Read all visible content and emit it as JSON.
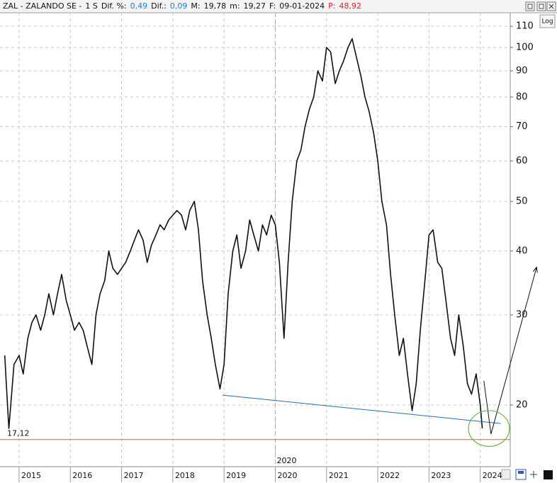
{
  "header": {
    "items": [
      {
        "text": "ZAL - ZALANDO SE -",
        "color": "#111111"
      },
      {
        "text": "1 S",
        "color": "#111111"
      },
      {
        "text": "Dif. %:",
        "color": "#111111"
      },
      {
        "text": "0,49",
        "color": "#1e7fd6"
      },
      {
        "text": "Dif.:",
        "color": "#111111"
      },
      {
        "text": "0,09",
        "color": "#1e7fd6"
      },
      {
        "text": "M:",
        "color": "#111111"
      },
      {
        "text": "19,78",
        "color": "#111111"
      },
      {
        "text": "m:",
        "color": "#111111"
      },
      {
        "text": "19,27",
        "color": "#111111"
      },
      {
        "text": "F:",
        "color": "#111111"
      },
      {
        "text": "09-01-2024",
        "color": "#111111"
      },
      {
        "text": "P:",
        "color": "#d62020"
      },
      {
        "text": "48,92",
        "color": "#d62020"
      }
    ],
    "log_button": "Log"
  },
  "chart_data": {
    "type": "line",
    "log_y": true,
    "grid": true,
    "xlim": [
      2014.627,
      2024.585
    ],
    "ylim": [
      15.15,
      116.9
    ],
    "xticks": [
      2015,
      2016,
      2017,
      2018,
      2019,
      2020,
      2021,
      2022,
      2023,
      2024
    ],
    "yticks": [
      20,
      30,
      40,
      50,
      60,
      70,
      80,
      90,
      100,
      110
    ],
    "marker_x": 2020,
    "level": {
      "value": 17.12,
      "label": "17,12",
      "color": "#e0601a"
    },
    "trendline": {
      "x": [
        2018.97,
        2024.4
      ],
      "y": [
        20.91,
        18.4
      ],
      "color": "#1f6fb5"
    },
    "arrow": {
      "x": [
        2024.07,
        2024.21,
        2025.1
      ],
      "y": [
        22.3,
        17.55,
        37.2
      ],
      "color": "#111111"
    },
    "ellipse": {
      "x": [
        2023.77,
        2024.57
      ],
      "y": [
        16.6,
        19.5
      ],
      "color": "#6bb84b"
    },
    "series": [
      {
        "color": "#111111",
        "x": [
          2014.72,
          2014.75,
          2014.8,
          2014.9,
          2015.0,
          2015.08,
          2015.17,
          2015.25,
          2015.33,
          2015.42,
          2015.5,
          2015.58,
          2015.67,
          2015.75,
          2015.83,
          2015.92,
          2016.0,
          2016.08,
          2016.17,
          2016.25,
          2016.33,
          2016.42,
          2016.5,
          2016.58,
          2016.67,
          2016.75,
          2016.83,
          2016.92,
          2017.0,
          2017.08,
          2017.17,
          2017.25,
          2017.33,
          2017.42,
          2017.5,
          2017.58,
          2017.67,
          2017.75,
          2017.83,
          2017.92,
          2018.0,
          2018.08,
          2018.17,
          2018.25,
          2018.33,
          2018.42,
          2018.5,
          2018.58,
          2018.67,
          2018.75,
          2018.83,
          2018.92,
          2019.0,
          2019.08,
          2019.17,
          2019.25,
          2019.33,
          2019.42,
          2019.5,
          2019.58,
          2019.67,
          2019.75,
          2019.83,
          2019.92,
          2020.0,
          2020.08,
          2020.17,
          2020.25,
          2020.33,
          2020.42,
          2020.5,
          2020.58,
          2020.67,
          2020.75,
          2020.83,
          2020.92,
          2021.0,
          2021.08,
          2021.17,
          2021.25,
          2021.33,
          2021.42,
          2021.5,
          2021.58,
          2021.67,
          2021.75,
          2021.83,
          2021.92,
          2022.0,
          2022.08,
          2022.17,
          2022.25,
          2022.33,
          2022.42,
          2022.5,
          2022.58,
          2022.67,
          2022.75,
          2022.83,
          2022.92,
          2023.0,
          2023.08,
          2023.17,
          2023.25,
          2023.33,
          2023.42,
          2023.5,
          2023.58,
          2023.67,
          2023.75,
          2023.83,
          2023.92,
          2024.0,
          2024.04
        ],
        "values": [
          25,
          22,
          18,
          24,
          25,
          23,
          27,
          29,
          30,
          28,
          30,
          33,
          30,
          33,
          36,
          32,
          30,
          28,
          29,
          28,
          26,
          24,
          30,
          33,
          35,
          40,
          37,
          36,
          37,
          38,
          40,
          42,
          44,
          42,
          38,
          41,
          43,
          45,
          44,
          46,
          47,
          48,
          47,
          44,
          48,
          50,
          44,
          35,
          30,
          27,
          24,
          21.5,
          24,
          33,
          40,
          43,
          37,
          40,
          46,
          43,
          40,
          45,
          43,
          47,
          45,
          38,
          27,
          38,
          50,
          60,
          63,
          70,
          76,
          80,
          90,
          86,
          100,
          98,
          85,
          90,
          94,
          100,
          104,
          96,
          88,
          80,
          75,
          68,
          60,
          50,
          45,
          36,
          30,
          25,
          27,
          23,
          19.5,
          22,
          28,
          35,
          43,
          44,
          38,
          37,
          32,
          27,
          25,
          30,
          26,
          22,
          21,
          23,
          20,
          18
        ]
      }
    ]
  }
}
